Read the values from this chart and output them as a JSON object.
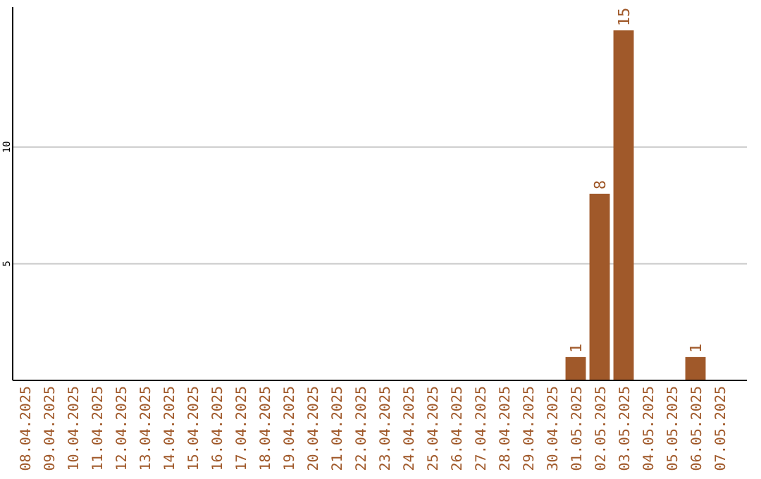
{
  "chart_data": {
    "type": "bar",
    "categories": [
      "08.04.2025",
      "09.04.2025",
      "10.04.2025",
      "11.04.2025",
      "12.04.2025",
      "13.04.2025",
      "14.04.2025",
      "15.04.2025",
      "16.04.2025",
      "17.04.2025",
      "18.04.2025",
      "19.04.2025",
      "20.04.2025",
      "21.04.2025",
      "22.04.2025",
      "23.04.2025",
      "24.04.2025",
      "25.04.2025",
      "26.04.2025",
      "27.04.2025",
      "28.04.2025",
      "29.04.2025",
      "30.04.2025",
      "01.05.2025",
      "02.05.2025",
      "03.05.2025",
      "04.05.2025",
      "05.05.2025",
      "06.05.2025",
      "07.05.2025"
    ],
    "values": [
      0,
      0,
      0,
      0,
      0,
      0,
      0,
      0,
      0,
      0,
      0,
      0,
      0,
      0,
      0,
      0,
      0,
      0,
      0,
      0,
      0,
      0,
      0,
      1,
      8,
      15,
      0,
      0,
      1,
      0
    ],
    "value_labels": [
      null,
      null,
      null,
      null,
      null,
      null,
      null,
      null,
      null,
      null,
      null,
      null,
      null,
      null,
      null,
      null,
      null,
      null,
      null,
      null,
      null,
      null,
      null,
      "1",
      "8",
      "15",
      null,
      null,
      "1",
      null
    ],
    "color": "#a0592a",
    "ylim": [
      0,
      16
    ],
    "yticks": [
      5,
      10
    ],
    "grid": "y"
  }
}
